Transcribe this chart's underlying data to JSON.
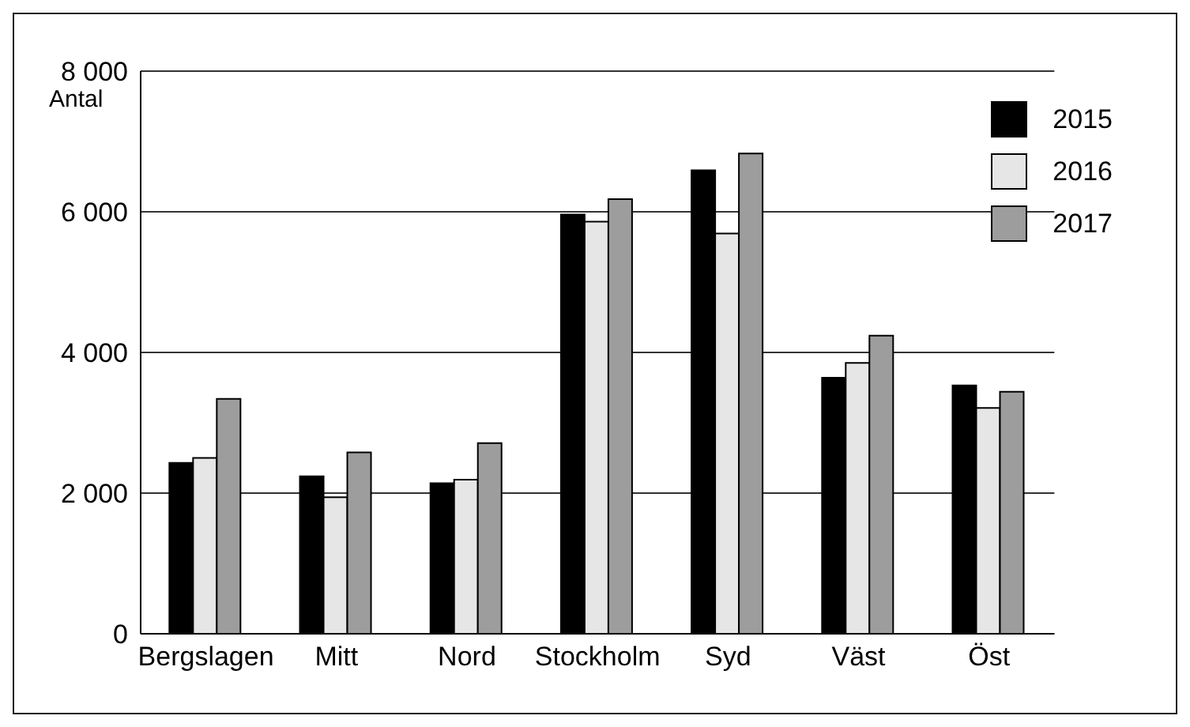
{
  "chart_data": {
    "type": "bar",
    "ylabel": "Antal",
    "categories": [
      "Bergslagen",
      "Mitt",
      "Nord",
      "Stockholm",
      "Syd",
      "Väst",
      "Öst"
    ],
    "series": [
      {
        "name": "2015",
        "color": "#000000",
        "values": [
          2430,
          2240,
          2140,
          5960,
          6590,
          3640,
          3530
        ]
      },
      {
        "name": "2016",
        "color": "#e6e6e6",
        "values": [
          2500,
          1940,
          2190,
          5860,
          5690,
          3850,
          3210
        ]
      },
      {
        "name": "2017",
        "color": "#9d9d9d",
        "values": [
          3340,
          2580,
          2710,
          6180,
          6830,
          4240,
          3440
        ]
      }
    ],
    "ylim": [
      0,
      8000
    ],
    "yticks": [
      {
        "value": 0,
        "label": "0"
      },
      {
        "value": 2000,
        "label": "2 000"
      },
      {
        "value": 4000,
        "label": "4 000"
      },
      {
        "value": 6000,
        "label": "6 000"
      },
      {
        "value": 8000,
        "label": "8 000"
      }
    ],
    "grid": "y",
    "legend": "top right"
  }
}
